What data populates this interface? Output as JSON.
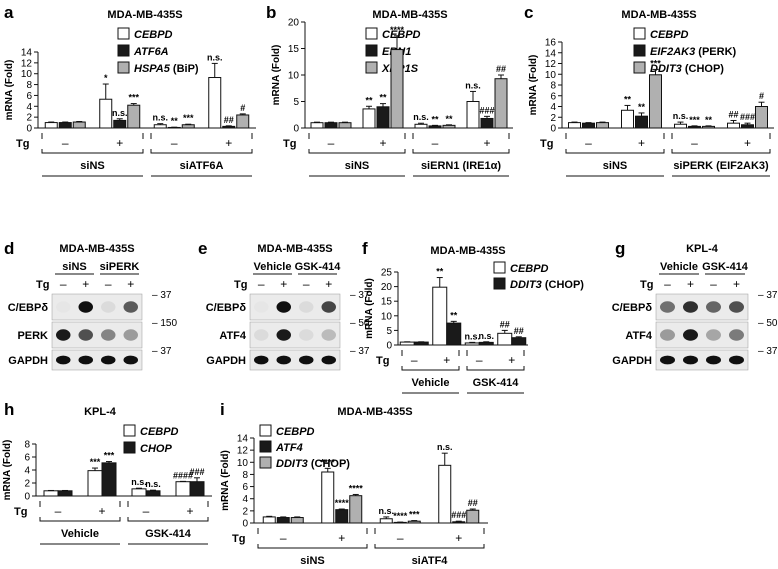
{
  "panels": {
    "a": {
      "letter": "a",
      "title": "MDA-MB-435S",
      "ylabel": "mRNA (Fold)",
      "ymax": 14,
      "yticks": [
        0,
        2,
        4,
        6,
        8,
        10,
        12,
        14
      ],
      "tg": "Tg",
      "legend": [
        {
          "name": "CEBPD",
          "style": "italic",
          "fill": "#ffffff"
        },
        {
          "name": "ATF6A",
          "style": "italic",
          "fill": "#1a1a1a"
        },
        {
          "name": "HSPA5",
          "suffix": " (BiP)",
          "style": "italic",
          "fill": "#b0b0b0"
        }
      ],
      "groups": [
        {
          "tg": "–",
          "vals": [
            1.0,
            1.0,
            1.1
          ],
          "errs": [
            0.1,
            0.1,
            0.1
          ],
          "sig": [
            "",
            "",
            ""
          ]
        },
        {
          "tg": "+",
          "vals": [
            5.3,
            1.4,
            4.2
          ],
          "errs": [
            2.8,
            0.3,
            0.3
          ],
          "sig": [
            "*",
            "n.s.",
            "***"
          ]
        },
        {
          "tg": "–",
          "vals": [
            0.6,
            0.1,
            0.6
          ],
          "errs": [
            0.2,
            0.05,
            0.1
          ],
          "sig": [
            "n.s.",
            "**",
            "***"
          ]
        },
        {
          "tg": "+",
          "vals": [
            9.3,
            0.3,
            2.4
          ],
          "errs": [
            2.6,
            0.1,
            0.2
          ],
          "sig": [
            "n.s.",
            "##",
            "#"
          ]
        }
      ],
      "conditions": [
        "siNS",
        "siATF6A"
      ]
    },
    "b": {
      "letter": "b",
      "title": "MDA-MB-435S",
      "ylabel": "mRNA (Fold)",
      "ymax": 20,
      "yticks": [
        0,
        5,
        10,
        15,
        20
      ],
      "tg": "Tg",
      "legend": [
        {
          "name": "CEBPD",
          "style": "italic",
          "fill": "#ffffff"
        },
        {
          "name": "ERN1",
          "style": "italic",
          "fill": "#1a1a1a"
        },
        {
          "name": "XBP1S",
          "style": "italic",
          "fill": "#b0b0b0"
        }
      ],
      "groups": [
        {
          "tg": "–",
          "vals": [
            1.0,
            1.0,
            1.0
          ],
          "errs": [
            0.1,
            0.1,
            0.1
          ],
          "sig": [
            "",
            "",
            ""
          ]
        },
        {
          "tg": "+",
          "vals": [
            3.6,
            4.0,
            14.8
          ],
          "errs": [
            0.5,
            0.6,
            2.6
          ],
          "sig": [
            "**",
            "**",
            "****"
          ]
        },
        {
          "tg": "–",
          "vals": [
            0.7,
            0.4,
            0.5
          ],
          "errs": [
            0.2,
            0.1,
            0.1
          ],
          "sig": [
            "n.s.",
            "**",
            "**"
          ]
        },
        {
          "tg": "+",
          "vals": [
            5.0,
            1.8,
            9.3
          ],
          "errs": [
            1.9,
            0.4,
            0.7
          ],
          "sig": [
            "n.s.",
            "###",
            "##"
          ]
        }
      ],
      "conditions": [
        "siNS",
        "siERN1 (IRE1α)"
      ]
    },
    "c": {
      "letter": "c",
      "title": "MDA-MB-435S",
      "ylabel": "mRNA (Fold)",
      "ymax": 16,
      "yticks": [
        0,
        2,
        4,
        6,
        8,
        10,
        12,
        14,
        16
      ],
      "tg": "Tg",
      "legend": [
        {
          "name": "CEBPD",
          "style": "italic",
          "fill": "#ffffff"
        },
        {
          "name": "EIF2AK3",
          "suffix": " (PERK)",
          "style": "italic",
          "fill": "#1a1a1a"
        },
        {
          "name": "DDIT3",
          "suffix": " (CHOP)",
          "style": "italic",
          "fill": "#b0b0b0"
        }
      ],
      "groups": [
        {
          "tg": "–",
          "vals": [
            1.0,
            0.9,
            1.0
          ],
          "errs": [
            0.1,
            0.1,
            0.1
          ],
          "sig": [
            "",
            "",
            ""
          ]
        },
        {
          "tg": "+",
          "vals": [
            3.3,
            2.2,
            9.9
          ],
          "errs": [
            0.9,
            0.6,
            1.0
          ],
          "sig": [
            "**",
            "**",
            "***"
          ]
        },
        {
          "tg": "–",
          "vals": [
            0.7,
            0.3,
            0.3
          ],
          "errs": [
            0.4,
            0.1,
            0.1
          ],
          "sig": [
            "n.s.",
            "***",
            "**"
          ]
        },
        {
          "tg": "+",
          "vals": [
            0.9,
            0.6,
            4.0
          ],
          "errs": [
            0.5,
            0.3,
            0.8
          ],
          "sig": [
            "##",
            "###",
            "#"
          ]
        }
      ],
      "conditions": [
        "siNS",
        "siPERK (EIF2AK3)"
      ]
    },
    "f": {
      "letter": "f",
      "title": "MDA-MB-435S",
      "ylabel": "mRNA (Fold)",
      "ymax": 25,
      "yticks": [
        0,
        5,
        10,
        15,
        20,
        25
      ],
      "tg": "Tg",
      "legend": [
        {
          "name": "CEBPD",
          "style": "italic",
          "fill": "#ffffff"
        },
        {
          "name": "DDIT3",
          "suffix": " (CHOP)",
          "style": "italic",
          "fill": "#1a1a1a"
        }
      ],
      "groups": [
        {
          "tg": "–",
          "vals": [
            1.0,
            1.0
          ],
          "errs": [
            0.1,
            0.1
          ],
          "sig": [
            "",
            ""
          ]
        },
        {
          "tg": "+",
          "vals": [
            19.8,
            7.5
          ],
          "errs": [
            3.3,
            0.6
          ],
          "sig": [
            "**",
            "**"
          ]
        },
        {
          "tg": "–",
          "vals": [
            0.7,
            0.9
          ],
          "errs": [
            0.2,
            0.2
          ],
          "sig": [
            "n.s.",
            "n.s."
          ]
        },
        {
          "tg": "+",
          "vals": [
            4.0,
            2.5
          ],
          "errs": [
            1.0,
            0.3
          ],
          "sig": [
            "##",
            "##"
          ]
        }
      ],
      "conditions": [
        "Vehicle",
        "GSK-414"
      ]
    },
    "h": {
      "letter": "h",
      "title": "KPL-4",
      "ylabel": "mRNA (Fold)",
      "ymax": 8,
      "yticks": [
        0,
        2,
        4,
        6,
        8
      ],
      "tg": "Tg",
      "legend": [
        {
          "name": "CEBPD",
          "style": "italic",
          "fill": "#ffffff"
        },
        {
          "name": "CHOP",
          "style": "italic",
          "fill": "#1a1a1a"
        }
      ],
      "groups": [
        {
          "tg": "–",
          "vals": [
            0.8,
            0.8
          ],
          "errs": [
            0.05,
            0.05
          ],
          "sig": [
            "",
            ""
          ]
        },
        {
          "tg": "+",
          "vals": [
            3.9,
            5.1
          ],
          "errs": [
            0.4,
            0.2
          ],
          "sig": [
            "***",
            "***"
          ]
        },
        {
          "tg": "–",
          "vals": [
            1.1,
            0.8
          ],
          "errs": [
            0.1,
            0.1
          ],
          "sig": [
            "n.s.",
            "n.s."
          ]
        },
        {
          "tg": "+",
          "vals": [
            2.2,
            2.2
          ],
          "errs": [
            0.05,
            0.6
          ],
          "sig": [
            "####",
            "###"
          ]
        }
      ],
      "conditions": [
        "Vehicle",
        "GSK-414"
      ]
    },
    "i": {
      "letter": "i",
      "title": "MDA-MB-435S",
      "ylabel": "mRNA (Fold)",
      "ymax": 14,
      "yticks": [
        0,
        2,
        4,
        6,
        8,
        10,
        12,
        14
      ],
      "tg": "Tg",
      "legend": [
        {
          "name": "CEBPD",
          "style": "italic",
          "fill": "#ffffff"
        },
        {
          "name": "ATF4",
          "style": "italic",
          "fill": "#1a1a1a"
        },
        {
          "name": "DDIT3",
          "suffix": " (CHOP)",
          "style": "italic",
          "fill": "#b0b0b0"
        }
      ],
      "groups": [
        {
          "tg": "–",
          "vals": [
            1.0,
            0.9,
            0.9
          ],
          "errs": [
            0.1,
            0.1,
            0.1
          ],
          "sig": [
            "",
            "",
            ""
          ]
        },
        {
          "tg": "+",
          "vals": [
            8.4,
            2.2,
            4.5
          ],
          "errs": [
            0.6,
            0.1,
            0.2
          ],
          "sig": [
            "****",
            "****",
            "****"
          ]
        },
        {
          "tg": "–",
          "vals": [
            0.7,
            0.1,
            0.3
          ],
          "errs": [
            0.3,
            0.05,
            0.1
          ],
          "sig": [
            "n.s.",
            "****",
            "***"
          ]
        },
        {
          "tg": "+",
          "vals": [
            9.5,
            0.2,
            2.1
          ],
          "errs": [
            2.0,
            0.1,
            0.2
          ],
          "sig": [
            "n.s.",
            "###",
            "##"
          ]
        }
      ],
      "conditions": [
        "siNS",
        "siATF4"
      ]
    }
  },
  "blots": {
    "d": {
      "letter": "d",
      "title": "MDA-MB-435S",
      "conditions": [
        "siNS",
        "siPERK"
      ],
      "tg": "Tg",
      "signs": [
        "–",
        "+",
        "–",
        "+"
      ],
      "rows": [
        {
          "label": "C/EBPδ",
          "marker": "37",
          "bands": [
            0,
            1.0,
            0.05,
            0.65
          ]
        },
        {
          "label": "PERK",
          "marker": "150",
          "bands": [
            0.95,
            0.7,
            0.45,
            0.35
          ]
        },
        {
          "label": "GAPDH",
          "marker": "37",
          "bands": [
            1,
            1,
            1,
            1
          ]
        }
      ]
    },
    "e": {
      "letter": "e",
      "title": "MDA-MB-435S",
      "conditions": [
        "Vehicle",
        "GSK-414"
      ],
      "tg": "Tg",
      "signs": [
        "–",
        "+",
        "–",
        "+"
      ],
      "rows": [
        {
          "label": "C/EBPδ",
          "marker": "37",
          "bands": [
            0,
            1.0,
            0.05,
            0.75
          ]
        },
        {
          "label": "ATF4",
          "marker": "50",
          "bands": [
            0.05,
            0.95,
            0.05,
            0.2
          ]
        },
        {
          "label": "GAPDH",
          "marker": "37",
          "bands": [
            1,
            1,
            1,
            1
          ]
        }
      ]
    },
    "g": {
      "letter": "g",
      "title": "KPL-4",
      "conditions": [
        "Vehicle",
        "GSK-414"
      ],
      "tg": "Tg",
      "signs": [
        "–",
        "+",
        "–",
        "+"
      ],
      "rows": [
        {
          "label": "C/EBPδ",
          "marker": "37",
          "bands": [
            0.55,
            0.85,
            0.6,
            0.7
          ]
        },
        {
          "label": "ATF4",
          "marker": "50",
          "bands": [
            0.35,
            0.95,
            0.3,
            0.5
          ]
        },
        {
          "label": "GAPDH",
          "marker": "37",
          "bands": [
            1,
            1,
            1,
            1
          ]
        }
      ]
    }
  },
  "chart_data": [
    {
      "type": "bar",
      "panel": "a",
      "title": "MDA-MB-435S",
      "ylabel": "mRNA (Fold)",
      "ylim": [
        0,
        14
      ],
      "categories": [
        "siNS Tg–",
        "siNS Tg+",
        "siATF6A Tg–",
        "siATF6A Tg+"
      ],
      "series": [
        {
          "name": "CEBPD",
          "values": [
            1.0,
            5.3,
            0.6,
            9.3
          ]
        },
        {
          "name": "ATF6A",
          "values": [
            1.0,
            1.4,
            0.1,
            0.3
          ]
        },
        {
          "name": "HSPA5 (BiP)",
          "values": [
            1.1,
            4.2,
            0.6,
            2.4
          ]
        }
      ]
    },
    {
      "type": "bar",
      "panel": "b",
      "title": "MDA-MB-435S",
      "ylabel": "mRNA (Fold)",
      "ylim": [
        0,
        20
      ],
      "categories": [
        "siNS Tg–",
        "siNS Tg+",
        "siERN1 (IRE1α) Tg–",
        "siERN1 (IRE1α) Tg+"
      ],
      "series": [
        {
          "name": "CEBPD",
          "values": [
            1.0,
            3.6,
            0.7,
            5.0
          ]
        },
        {
          "name": "ERN1",
          "values": [
            1.0,
            4.0,
            0.4,
            1.8
          ]
        },
        {
          "name": "XBP1S",
          "values": [
            1.0,
            14.8,
            0.5,
            9.3
          ]
        }
      ]
    },
    {
      "type": "bar",
      "panel": "c",
      "title": "MDA-MB-435S",
      "ylabel": "mRNA (Fold)",
      "ylim": [
        0,
        16
      ],
      "categories": [
        "siNS Tg–",
        "siNS Tg+",
        "siPERK (EIF2AK3) Tg–",
        "siPERK (EIF2AK3) Tg+"
      ],
      "series": [
        {
          "name": "CEBPD",
          "values": [
            1.0,
            3.3,
            0.7,
            0.9
          ]
        },
        {
          "name": "EIF2AK3 (PERK)",
          "values": [
            0.9,
            2.2,
            0.3,
            0.6
          ]
        },
        {
          "name": "DDIT3 (CHOP)",
          "values": [
            1.0,
            9.9,
            0.3,
            4.0
          ]
        }
      ]
    },
    {
      "type": "bar",
      "panel": "f",
      "title": "MDA-MB-435S",
      "ylabel": "mRNA (Fold)",
      "ylim": [
        0,
        25
      ],
      "categories": [
        "Vehicle Tg–",
        "Vehicle Tg+",
        "GSK-414 Tg–",
        "GSK-414 Tg+"
      ],
      "series": [
        {
          "name": "CEBPD",
          "values": [
            1.0,
            19.8,
            0.7,
            4.0
          ]
        },
        {
          "name": "DDIT3 (CHOP)",
          "values": [
            1.0,
            7.5,
            0.9,
            2.5
          ]
        }
      ]
    },
    {
      "type": "bar",
      "panel": "h",
      "title": "KPL-4",
      "ylabel": "mRNA (Fold)",
      "ylim": [
        0,
        8
      ],
      "categories": [
        "Vehicle Tg–",
        "Vehicle Tg+",
        "GSK-414 Tg–",
        "GSK-414 Tg+"
      ],
      "series": [
        {
          "name": "CEBPD",
          "values": [
            0.8,
            3.9,
            1.1,
            2.2
          ]
        },
        {
          "name": "CHOP",
          "values": [
            0.8,
            5.1,
            0.8,
            2.2
          ]
        }
      ]
    },
    {
      "type": "bar",
      "panel": "i",
      "title": "MDA-MB-435S",
      "ylabel": "mRNA (Fold)",
      "ylim": [
        0,
        14
      ],
      "categories": [
        "siNS Tg–",
        "siNS Tg+",
        "siATF4 Tg–",
        "siATF4 Tg+"
      ],
      "series": [
        {
          "name": "CEBPD",
          "values": [
            1.0,
            8.4,
            0.7,
            9.5
          ]
        },
        {
          "name": "ATF4",
          "values": [
            0.9,
            2.2,
            0.1,
            0.2
          ]
        },
        {
          "name": "DDIT3 (CHOP)",
          "values": [
            0.9,
            4.5,
            0.3,
            2.1
          ]
        }
      ]
    }
  ]
}
